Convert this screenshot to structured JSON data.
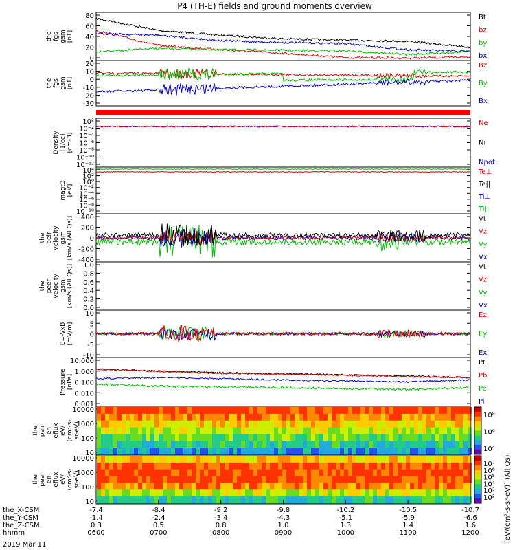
{
  "title": "P4 (TH-E) fields and ground moments overview",
  "panels": [
    {
      "id": "fgs-mag",
      "ylabel_lines": [
        "the",
        "fgs",
        "gsm",
        "[nT]"
      ],
      "ticks": [
        "80",
        "60",
        "40",
        "20",
        "0"
      ],
      "ylim": [
        0,
        80
      ],
      "legend": [
        {
          "label": "Bt",
          "color": "#000000"
        },
        {
          "label": "bz",
          "color": "#dd0000"
        },
        {
          "label": "by",
          "color": "#00bb00"
        },
        {
          "label": "bx",
          "color": "#0000cc"
        }
      ]
    },
    {
      "id": "fgs-comp",
      "ylabel_lines": [
        "the",
        "fgs",
        "gsm",
        "[nT]"
      ],
      "ticks": [
        "20",
        "10",
        "0",
        "-10",
        "-20",
        "-30"
      ],
      "ylim": [
        -35,
        20
      ],
      "legend": [
        {
          "label": "Bz",
          "color": "#dd0000"
        },
        {
          "label": "By",
          "color": "#00bb00"
        },
        {
          "label": "Bx",
          "color": "#0000cc"
        }
      ]
    },
    {
      "id": "density",
      "ylabel_lines": [
        "Density",
        "[1/cc]",
        "[cm-3]"
      ],
      "ticks": [
        "10²",
        "10⁻²",
        "10⁻⁴",
        "10⁻⁶",
        "10⁻⁸",
        "10⁻¹⁰",
        "10⁻¹²"
      ],
      "legend": [
        {
          "label": "Ne",
          "color": "#dd0000"
        },
        {
          "label": "Ni",
          "color": "#000000"
        },
        {
          "label": "Npot",
          "color": "#0000cc"
        }
      ]
    },
    {
      "id": "temp",
      "ylabel_lines": [
        "magt3",
        "[eV]"
      ],
      "ticks": [
        "10⁴",
        "10²",
        "10⁰",
        "10⁻²",
        "10⁻⁴",
        "10⁻⁶",
        "10⁻⁸",
        "10⁻¹⁰"
      ],
      "legend": [
        {
          "label": "Te⊥",
          "color": "#dd0000"
        },
        {
          "label": "Te||",
          "color": "#000000"
        },
        {
          "label": "Ti⊥",
          "color": "#0000cc"
        },
        {
          "label": "Ti||",
          "color": "#00bb00"
        }
      ]
    },
    {
      "id": "peir-vel",
      "ylabel_lines": [
        "the",
        "peir",
        "velocity",
        "gsm",
        "[km/s (All Qs)]"
      ],
      "ticks": [
        "400",
        "200",
        "0",
        "-200",
        "-400"
      ],
      "ylim": [
        -400,
        400
      ],
      "legend": [
        {
          "label": "Vt",
          "color": "#000000"
        },
        {
          "label": "Vz",
          "color": "#dd0000"
        },
        {
          "label": "Vy",
          "color": "#00bb00"
        },
        {
          "label": "Vx",
          "color": "#0000cc"
        }
      ]
    },
    {
      "id": "peer-vel",
      "ylabel_lines": [
        "the",
        "peer",
        "velocity",
        "gsm",
        "[km/s (All Qs)]"
      ],
      "ticks": [
        "1.0",
        "0.8",
        "0.6",
        "0.4",
        "0.2",
        "0.0"
      ],
      "ylim": [
        0,
        1
      ],
      "legend": [
        {
          "label": "Vt",
          "color": "#000000"
        },
        {
          "label": "Vz",
          "color": "#dd0000"
        },
        {
          "label": "Vy",
          "color": "#00bb00"
        },
        {
          "label": "Vx",
          "color": "#0000cc"
        }
      ]
    },
    {
      "id": "efield",
      "ylabel_lines": [
        "E=-VxB",
        "[mV/m]"
      ],
      "ticks": [
        "10",
        "5",
        "0",
        "-5",
        "-10"
      ],
      "ylim": [
        -10,
        10
      ],
      "legend": [
        {
          "label": "Ez",
          "color": "#dd0000"
        },
        {
          "label": "Ey",
          "color": "#00bb00"
        },
        {
          "label": "Ex",
          "color": "#0000cc"
        }
      ]
    },
    {
      "id": "pressure",
      "ylabel_lines": [
        "Pressure",
        "[nPa]"
      ],
      "ticks": [
        "10.000",
        "1.000",
        "0.100",
        "0.010",
        "0.001"
      ],
      "legend": [
        {
          "label": "Pt",
          "color": "#000000"
        },
        {
          "label": "Pb",
          "color": "#dd0000"
        },
        {
          "label": "Pe",
          "color": "#00bb00"
        },
        {
          "label": "Pi",
          "color": "#0000cc"
        }
      ]
    },
    {
      "id": "peir-spec",
      "ylabel_lines": [
        "the",
        "peir",
        "en",
        "eflux",
        "eV/",
        "(cm²-s-",
        "sr-eV)"
      ],
      "ticks": [
        "10000",
        "1000",
        "100",
        "10"
      ],
      "colorbar_ticks": [
        "10⁸",
        "10⁶",
        "10⁴"
      ]
    },
    {
      "id": "peer-spec",
      "ylabel_lines": [
        "the",
        "peer",
        "en",
        "eflux",
        "eV/",
        "(cm²-s-",
        "sr-eV)"
      ],
      "ticks": [
        "10000",
        "1000",
        "100",
        "10"
      ],
      "colorbar_ticks": [
        "10⁷",
        "10⁶",
        "10⁵",
        "10⁴",
        "10³",
        "10²"
      ]
    }
  ],
  "colorbar_label": "[eV/(cm²-s-sr-eV)] (All Qs)",
  "xaxis": {
    "rows": [
      {
        "label": "the_X-CSM",
        "values": [
          "-7.4",
          "-8.4",
          "-9.2",
          "-9.8",
          "-10.2",
          "-10.5",
          "-10.7"
        ]
      },
      {
        "label": "the_Y-CSM",
        "values": [
          "-1.4",
          "-2.4",
          "-3.4",
          "-4.3",
          "-5.1",
          "-5.9",
          "-6.6"
        ]
      },
      {
        "label": "the_Z-CSM",
        "values": [
          "0.3",
          "0.5",
          "0.8",
          "1.0",
          "1.3",
          "1.4",
          "1.6"
        ]
      },
      {
        "label": "hhmm",
        "values": [
          "0600",
          "0700",
          "0800",
          "0900",
          "1000",
          "1100",
          "1200"
        ]
      }
    ],
    "date": "2019 Mar 11"
  },
  "chart_data": {
    "type": "line",
    "title": "P4 (TH-E) fields and ground moments overview",
    "x": [
      "0600",
      "0700",
      "0800",
      "0900",
      "1000",
      "1100",
      "1200"
    ],
    "xlabel": "hhmm",
    "series": [
      {
        "name": "Bt",
        "values": [
          70,
          50,
          42,
          36,
          34,
          32,
          22
        ]
      },
      {
        "name": "bz",
        "values": [
          50,
          25,
          18,
          12,
          5,
          4,
          6
        ]
      },
      {
        "name": "by",
        "values": [
          15,
          20,
          18,
          17,
          16,
          10,
          15
        ]
      },
      {
        "name": "bx",
        "values": [
          45,
          42,
          33,
          30,
          28,
          18,
          15
        ]
      },
      {
        "name": "Pt",
        "values": [
          1.5,
          1.0,
          0.7,
          0.55,
          0.45,
          0.35,
          0.25
        ]
      },
      {
        "name": "Pb",
        "values": [
          1.5,
          0.9,
          0.6,
          0.5,
          0.4,
          0.3,
          0.25
        ]
      },
      {
        "name": "Pe",
        "values": [
          0.06,
          0.04,
          0.035,
          0.03,
          0.025,
          0.02,
          0.03
        ]
      },
      {
        "name": "Pi",
        "values": [
          0.2,
          0.25,
          0.2,
          0.15,
          0.12,
          0.1,
          0.15
        ]
      }
    ]
  }
}
